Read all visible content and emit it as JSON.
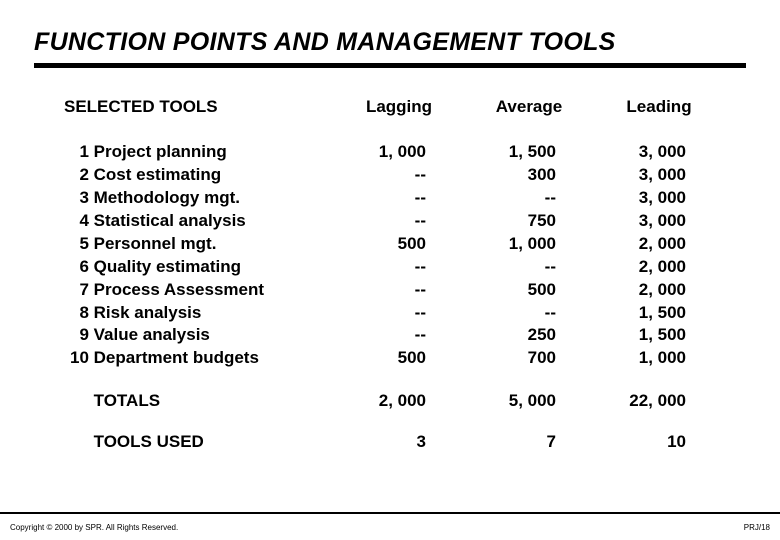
{
  "title": "FUNCTION POINTS AND MANAGEMENT TOOLS",
  "headers": {
    "tools": "SELECTED TOOLS",
    "lagging": "Lagging",
    "average": "Average",
    "leading": "Leading"
  },
  "rows": [
    {
      "num": "  1",
      "label": "Project planning",
      "lagging": "1, 000",
      "average": "1, 500",
      "leading": "3, 000"
    },
    {
      "num": "  2",
      "label": "Cost estimating",
      "lagging": "--",
      "average": "300",
      "leading": "3, 000"
    },
    {
      "num": "  3",
      "label": "Methodology mgt.",
      "lagging": "--",
      "average": "--",
      "leading": "3, 000"
    },
    {
      "num": "  4",
      "label": "Statistical analysis",
      "lagging": "--",
      "average": "750",
      "leading": "3, 000"
    },
    {
      "num": "  5",
      "label": "Personnel mgt.",
      "lagging": "500",
      "average": "1, 000",
      "leading": "2, 000"
    },
    {
      "num": "  6",
      "label": "Quality estimating",
      "lagging": "--",
      "average": "--",
      "leading": "2, 000"
    },
    {
      "num": "  7",
      "label": "Process Assessment",
      "lagging": "   --",
      "average": "500",
      "leading": "2, 000"
    },
    {
      "num": "  8",
      "label": "Risk analysis",
      "lagging": "--",
      "average": "--",
      "leading": "1, 500"
    },
    {
      "num": "  9",
      "label": "Value analysis",
      "lagging": "--",
      "average": "250",
      "leading": "1, 500"
    },
    {
      "num": "10",
      "label": "Department budgets",
      "lagging": "500",
      "average": "700",
      "leading": "1, 000"
    }
  ],
  "totals": {
    "label": "TOTALS",
    "lagging": "2, 000",
    "average": "5, 000",
    "leading": "22, 000"
  },
  "tools_used": {
    "label": "TOOLS USED",
    "lagging": "3",
    "average": "7",
    "leading": "10"
  },
  "footer": {
    "left": "Copyright © 2000 by SPR. All Rights Reserved.",
    "right": "PRJ/18"
  }
}
